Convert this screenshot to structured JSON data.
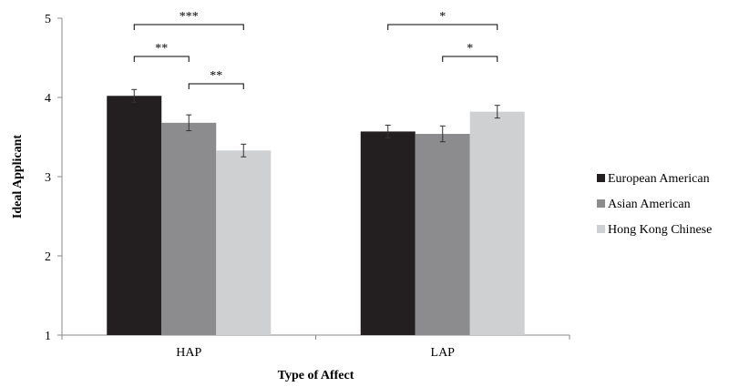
{
  "chart_data": {
    "type": "bar",
    "title": "",
    "xlabel": "Type of Affect",
    "ylabel": "Ideal Applicant",
    "ylim": [
      1,
      5
    ],
    "yticks": [
      "1",
      "2",
      "3",
      "4",
      "5"
    ],
    "categories": [
      "HAP",
      "LAP"
    ],
    "series": [
      {
        "name": "European American",
        "values": [
          4.02,
          3.57
        ],
        "errors": [
          0.08,
          0.08
        ],
        "color": "#231f20"
      },
      {
        "name": "Asian American",
        "values": [
          3.68,
          3.54
        ],
        "errors": [
          0.1,
          0.1
        ],
        "color": "#8c8c8f"
      },
      {
        "name": "Hong Kong Chinese",
        "values": [
          3.33,
          3.82
        ],
        "errors": [
          0.08,
          0.08
        ],
        "color": "#cfd0d2"
      }
    ],
    "grid": false,
    "legend_position": "right",
    "significance": [
      {
        "category": 0,
        "from": 0,
        "to": 2,
        "label": "***",
        "level": 1
      },
      {
        "category": 0,
        "from": 0,
        "to": 1,
        "label": "**",
        "level": 2
      },
      {
        "category": 0,
        "from": 1,
        "to": 2,
        "label": "**",
        "level": 3
      },
      {
        "category": 1,
        "from": 0,
        "to": 2,
        "label": "*",
        "level": 1
      },
      {
        "category": 1,
        "from": 1,
        "to": 2,
        "label": "*",
        "level": 2
      }
    ]
  }
}
